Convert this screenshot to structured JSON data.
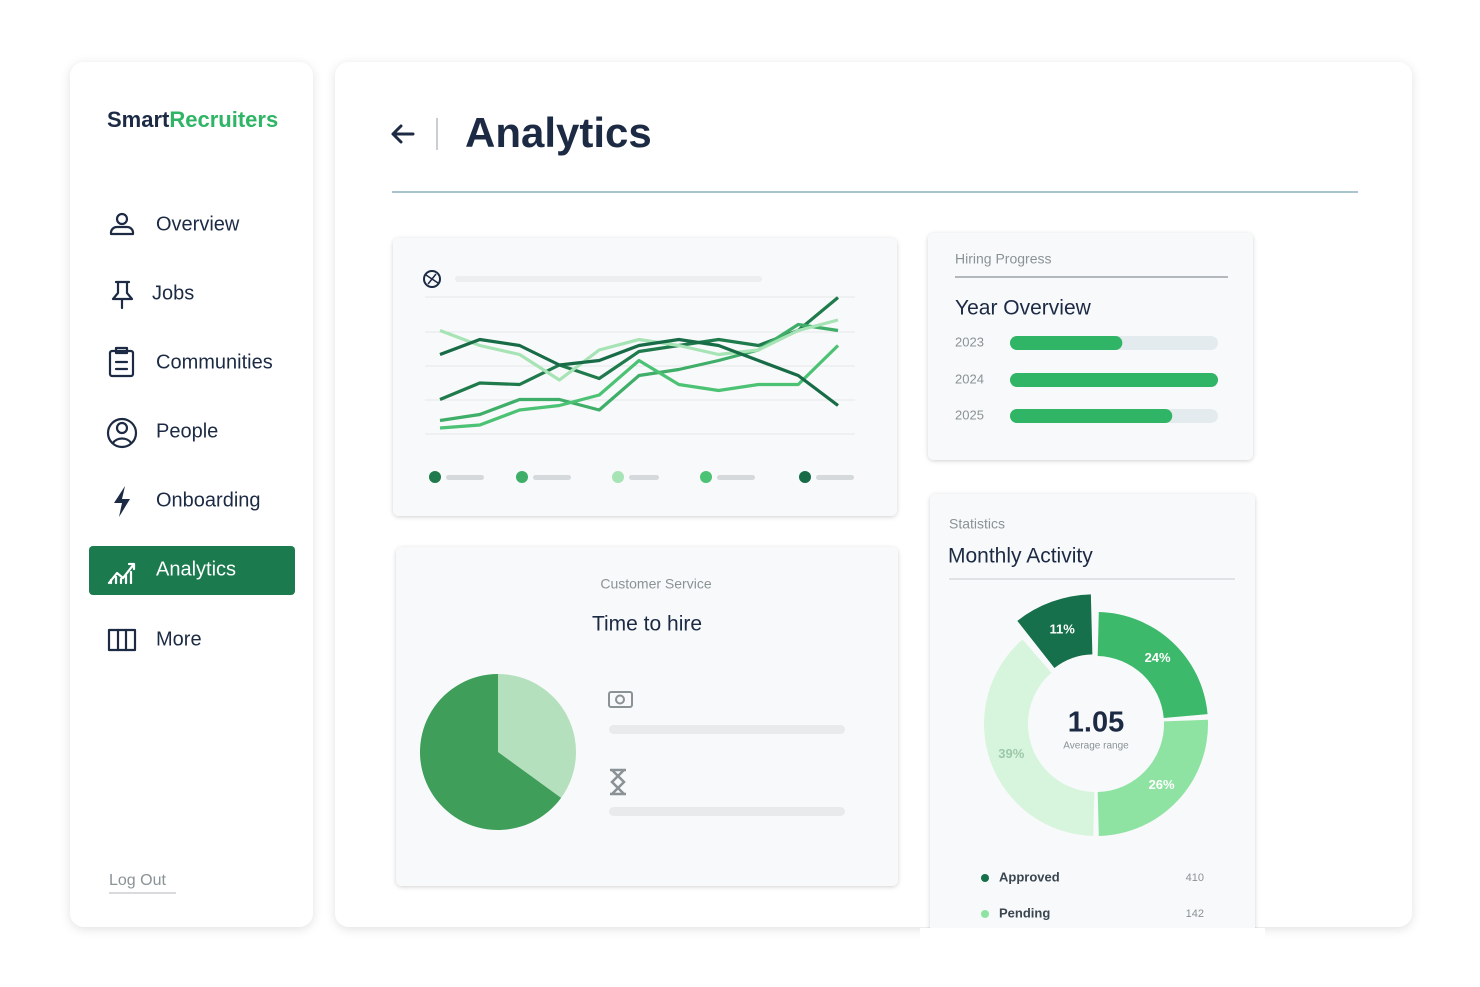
{
  "sidebar": {
    "logo": [
      "Smart",
      "Recruiters"
    ],
    "items": [
      "Overview",
      "Jobs",
      "Communities",
      "People",
      "Onboarding",
      "Analytics",
      "More"
    ],
    "logout": "Log Out"
  },
  "header": {
    "title": "Analytics"
  },
  "chart_data": [
    {
      "type": "line",
      "ylim": [
        0,
        100
      ],
      "series": [
        {
          "color": "#1f7a4c",
          "values": [
            27,
            38,
            37,
            50,
            41,
            59,
            63,
            67,
            63,
            73,
            95
          ]
        },
        {
          "color": "#3fae68",
          "values": [
            13,
            17,
            27,
            27,
            20,
            43,
            47,
            53,
            60,
            77,
            73
          ]
        },
        {
          "color": "#a6e3b5",
          "values": [
            73,
            63,
            57,
            40,
            60,
            67,
            63,
            57,
            60,
            73,
            80
          ]
        },
        {
          "color": "#4cc274",
          "values": [
            8,
            10,
            20,
            23,
            30,
            53,
            37,
            33,
            37,
            37,
            63
          ]
        },
        {
          "color": "#176b46",
          "values": [
            57,
            67,
            63,
            50,
            53,
            63,
            67,
            63,
            53,
            43,
            23
          ]
        }
      ]
    },
    {
      "type": "hbar",
      "label": "Hiring Progress",
      "title": "Year Overview",
      "categories": [
        "2023",
        "2024",
        "2025"
      ],
      "values": [
        54,
        100,
        78
      ],
      "xlim": [
        0,
        100
      ],
      "color": "#2fb565"
    },
    {
      "type": "pie",
      "label": "Customer Service",
      "title": "Time to hire",
      "values": [
        35,
        65
      ],
      "colors": [
        "#b5e0bd",
        "#3e9e5a"
      ]
    },
    {
      "type": "donut",
      "label": "Statistics",
      "title": "Monthly Activity",
      "values": [
        24,
        26,
        39,
        11
      ],
      "value_labels": [
        "24%",
        "26%",
        "39%",
        "11%"
      ],
      "colors": [
        "#3cb96a",
        "#8ee3a2",
        "#d7f5dd",
        "#16704b"
      ],
      "center_value": "1.05",
      "center_label": "Average range",
      "legend": [
        {
          "name": "Approved",
          "value": 410,
          "color": "#16704b"
        },
        {
          "name": "Pending",
          "value": 142,
          "color": "#8ee3a2"
        }
      ]
    }
  ]
}
